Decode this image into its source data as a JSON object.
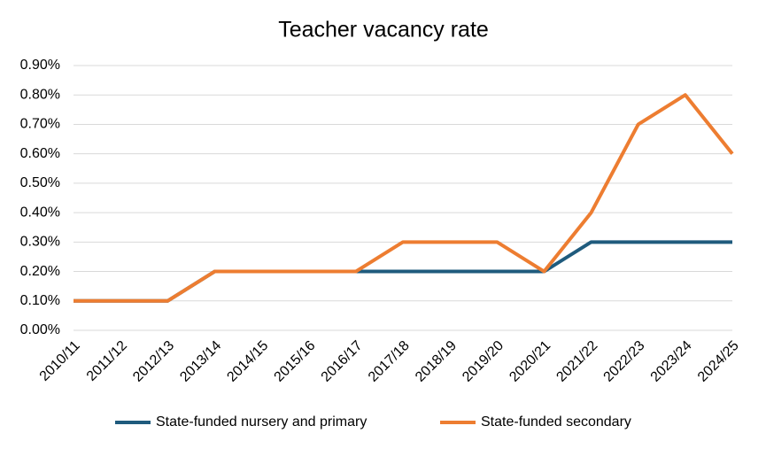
{
  "chart_data": {
    "type": "line",
    "title": "Teacher vacancy rate",
    "categories": [
      "2010/11",
      "2011/12",
      "2012/13",
      "2013/14",
      "2014/15",
      "2015/16",
      "2016/17",
      "2017/18",
      "2018/19",
      "2019/20",
      "2020/21",
      "2021/22",
      "2022/23",
      "2023/24",
      "2024/25"
    ],
    "series": [
      {
        "name": "State-funded nursery and primary",
        "color": "#1f5b7d",
        "values": [
          0.1,
          0.1,
          0.1,
          0.2,
          0.2,
          0.2,
          0.2,
          0.2,
          0.2,
          0.2,
          0.2,
          0.3,
          0.3,
          0.3,
          0.3
        ]
      },
      {
        "name": "State-funded secondary",
        "color": "#ed7d31",
        "values": [
          0.1,
          0.1,
          0.1,
          0.2,
          0.2,
          0.2,
          0.2,
          0.3,
          0.3,
          0.3,
          0.2,
          0.4,
          0.7,
          0.8,
          0.6
        ]
      }
    ],
    "ylim": [
      0,
      0.9
    ],
    "yticks": [
      {
        "value": 0,
        "label": "0.00%"
      },
      {
        "value": 0.1,
        "label": "0.10%"
      },
      {
        "value": 0.2,
        "label": "0.20%"
      },
      {
        "value": 0.3,
        "label": "0.30%"
      },
      {
        "value": 0.4,
        "label": "0.40%"
      },
      {
        "value": 0.5,
        "label": "0.50%"
      },
      {
        "value": 0.6,
        "label": "0.60%"
      },
      {
        "value": 0.7,
        "label": "0.70%"
      },
      {
        "value": 0.8,
        "label": "0.80%"
      },
      {
        "value": 0.9,
        "label": "0.90%"
      }
    ],
    "grid": true,
    "legend": "bottom"
  }
}
